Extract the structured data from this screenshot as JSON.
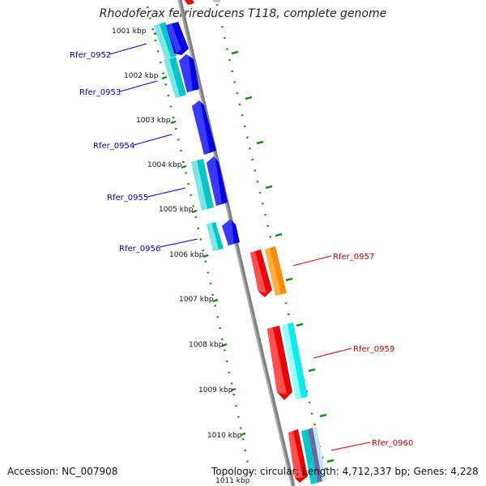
{
  "title": "Rhodoferax ferrireducens T118, complete genome",
  "footer": {
    "accession": "Accession: NC_007908",
    "topology": "Topology: circular; Length: 4,712,337 bp; Genes: 4,228"
  },
  "colors": {
    "backbone": "#7f7f7f",
    "tick": "#1e8a1e",
    "cds_forward": "#0000ee",
    "cds_cyan": "#00c8c8",
    "cds_red": "#ee0000",
    "cds_orange": "#ff8c00",
    "cds_cyan_light": "#00eeee",
    "label_forward": "#0000aa",
    "label_reverse": "#cc0000"
  },
  "kbp_labels": [
    "1001 kbp",
    "1002 kbp",
    "1003 kbp",
    "1004 kbp",
    "1005 kbp",
    "1006 kbp",
    "1007 kbp",
    "1008 kbp",
    "1009 kbp",
    "1010 kbp",
    "1011 kbp"
  ],
  "gene_labels": {
    "left": [
      "Rfer_0952",
      "Rfer_0953",
      "Rfer_0954",
      "Rfer_0955",
      "Rfer_0956"
    ],
    "right": [
      "Rfer_0957",
      "Rfer_0959",
      "Rfer_0960"
    ]
  }
}
